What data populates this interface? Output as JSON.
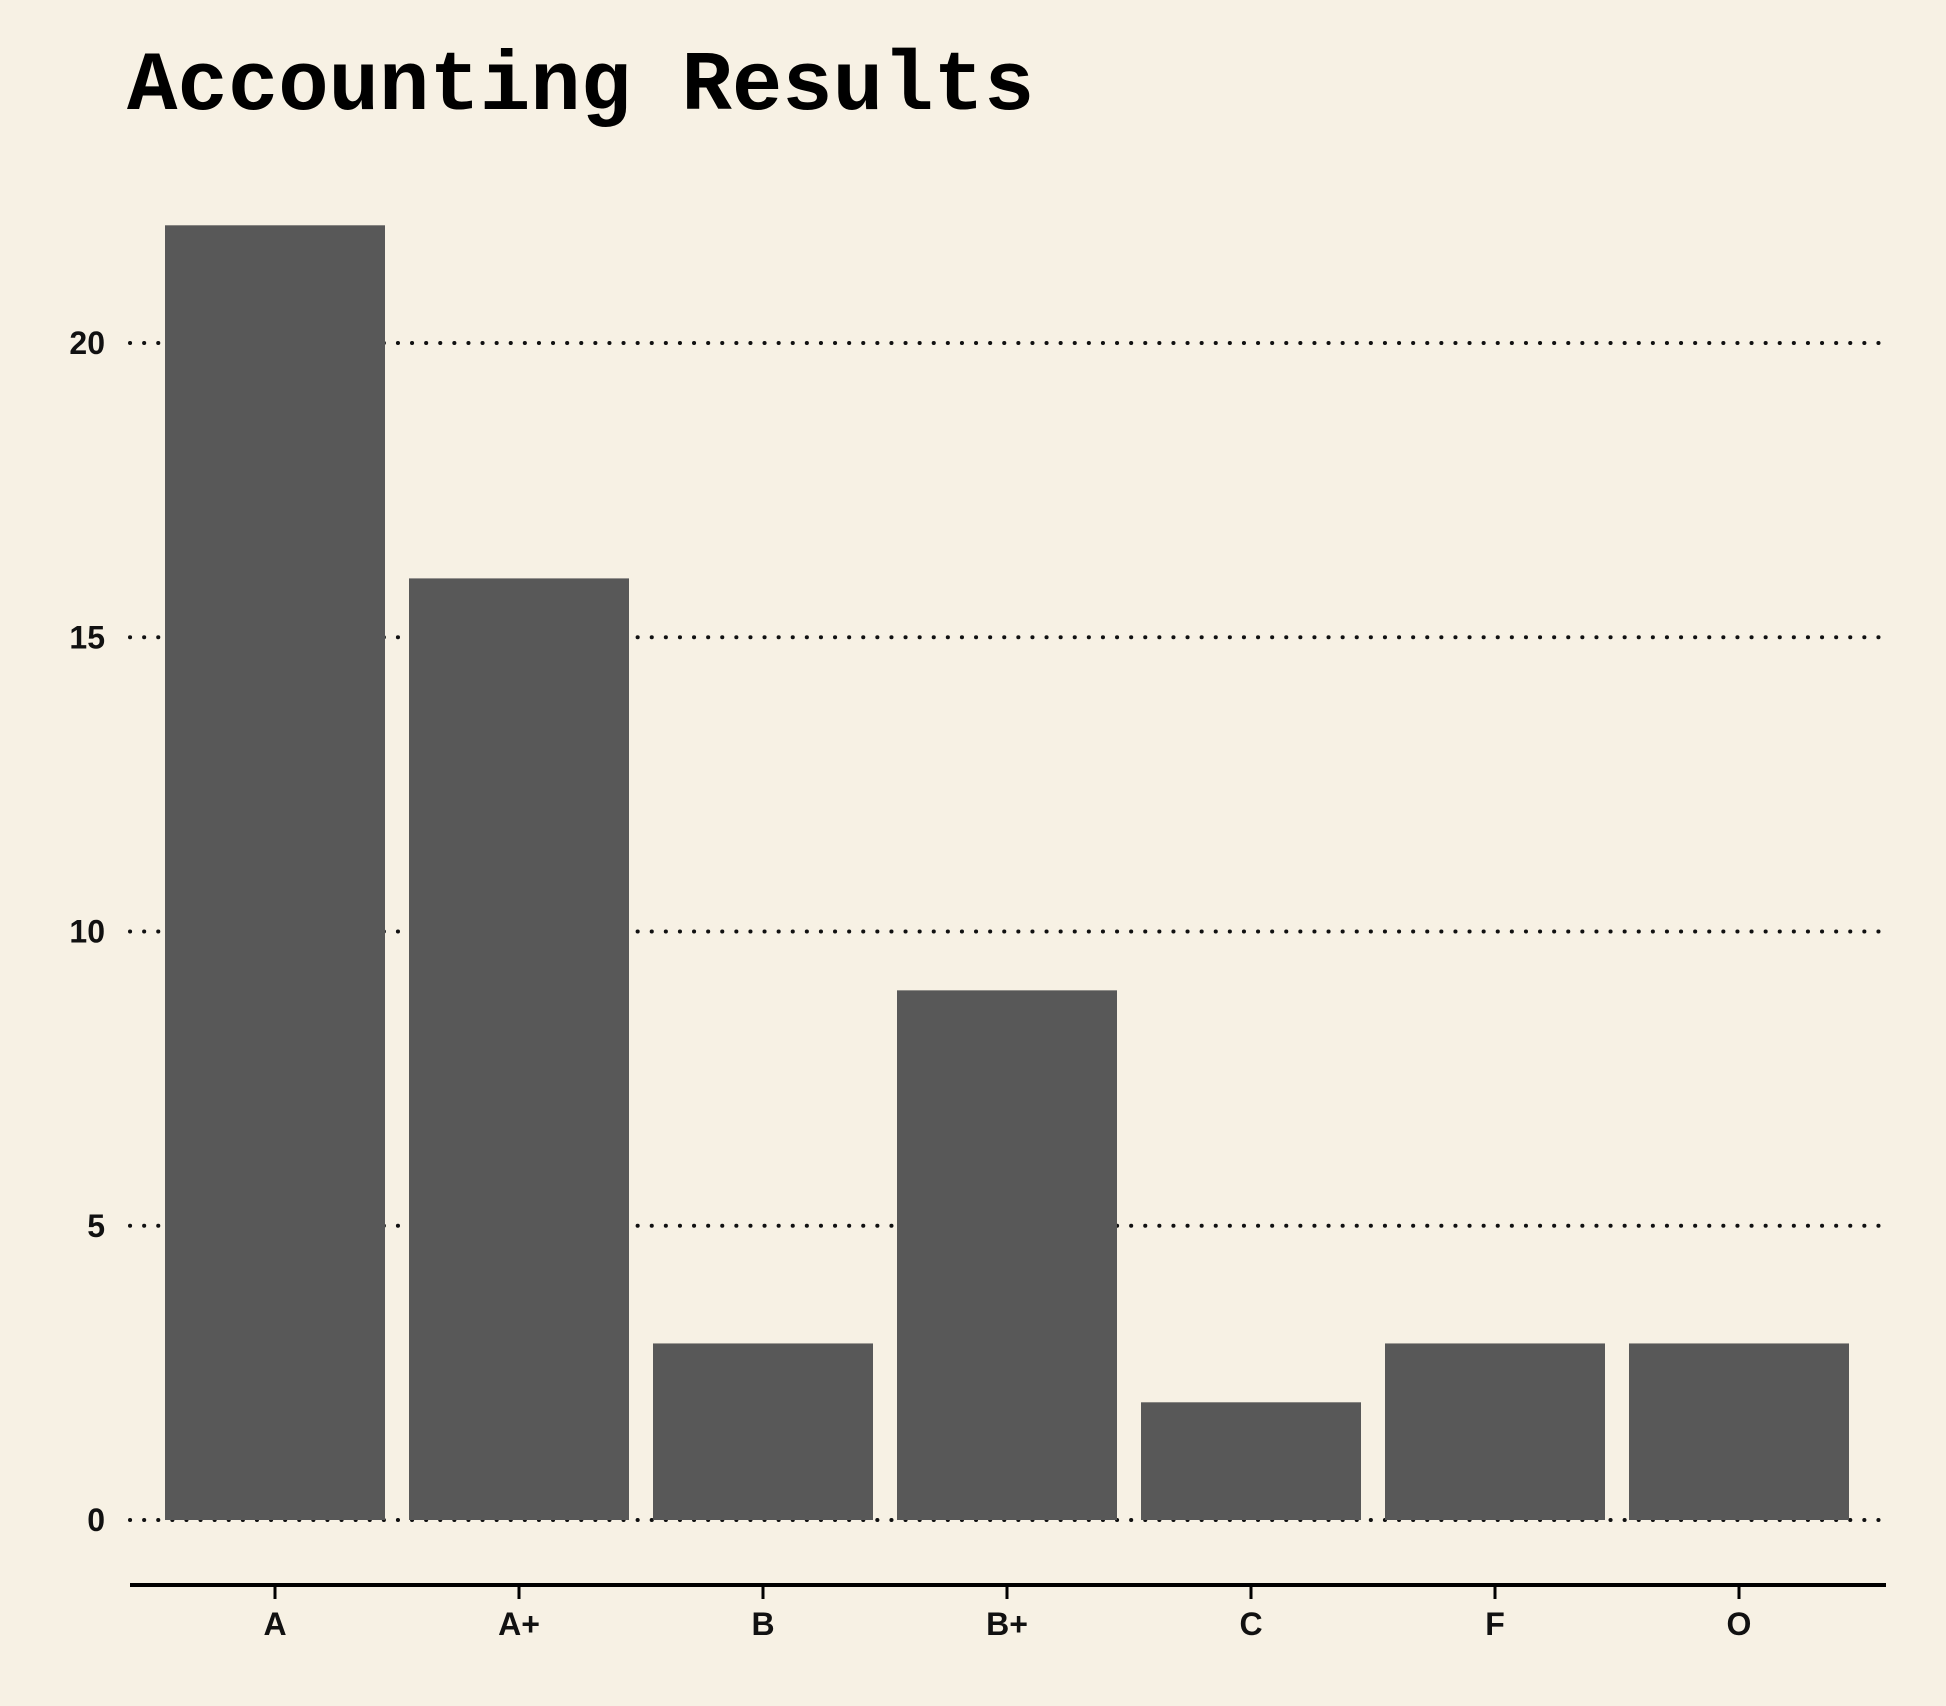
{
  "colors": {
    "background": "#f7f1e4",
    "bar": "#585858",
    "text": "#111111",
    "grid": "#111111"
  },
  "chart_data": {
    "type": "bar",
    "title": "Accounting Results",
    "xlabel": "",
    "ylabel": "",
    "categories": [
      "A",
      "A+",
      "B",
      "B+",
      "C",
      "F",
      "O"
    ],
    "values": [
      22,
      16,
      3,
      9,
      2,
      3,
      3
    ],
    "ylim": [
      0,
      23
    ],
    "yticks": [
      0,
      5,
      10,
      15,
      20
    ],
    "grid": "horizontal-dotted",
    "legend": "none"
  }
}
